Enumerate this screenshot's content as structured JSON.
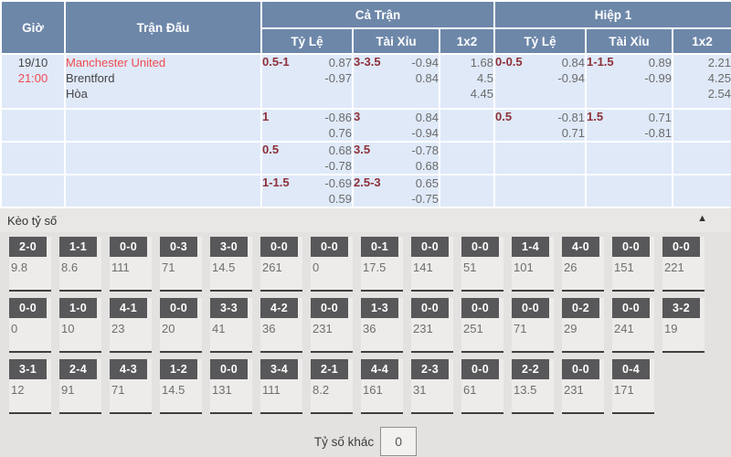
{
  "header": {
    "col_time": "Giờ",
    "col_match": "Trận Đấu",
    "group_full": "Cả Trận",
    "group_half": "Hiệp 1",
    "sub_handicap": "Tỷ Lệ",
    "sub_ou": "Tài Xỉu",
    "sub_1x2": "1x2"
  },
  "match": {
    "date": "19/10",
    "time": "21:00",
    "home": "Manchester United",
    "away": "Brentford",
    "draw": "Hòa"
  },
  "odds": {
    "rows": [
      {
        "full_handicap": {
          "line": "0.5-1",
          "a": "0.87",
          "b": "-0.97"
        },
        "full_ou": {
          "line": "3-3.5",
          "a": "-0.94",
          "b": "0.84"
        },
        "full_1x2": {
          "h": "1.68",
          "d": "4.5",
          "a": "4.45"
        },
        "half_handicap": {
          "line": "0-0.5",
          "a": "0.84",
          "b": "-0.94"
        },
        "half_ou": {
          "line": "1-1.5",
          "a": "0.89",
          "b": "-0.99"
        },
        "half_1x2": {
          "h": "2.21",
          "d": "4.25",
          "a": "2.54"
        }
      },
      {
        "full_handicap": {
          "line": "1",
          "a": "-0.86",
          "b": "0.76"
        },
        "full_ou": {
          "line": "3",
          "a": "0.84",
          "b": "-0.94"
        },
        "full_1x2": {
          "h": "",
          "d": "",
          "a": ""
        },
        "half_handicap": {
          "line": "0.5",
          "a": "-0.81",
          "b": "0.71"
        },
        "half_ou": {
          "line": "1.5",
          "a": "0.71",
          "b": "-0.81"
        },
        "half_1x2": {
          "h": "",
          "d": "",
          "a": ""
        }
      },
      {
        "full_handicap": {
          "line": "0.5",
          "a": "0.68",
          "b": "-0.78"
        },
        "full_ou": {
          "line": "3.5",
          "a": "-0.78",
          "b": "0.68"
        },
        "full_1x2": {
          "h": "",
          "d": "",
          "a": ""
        },
        "half_handicap": {
          "line": "",
          "a": "",
          "b": ""
        },
        "half_ou": {
          "line": "",
          "a": "",
          "b": ""
        },
        "half_1x2": {
          "h": "",
          "d": "",
          "a": ""
        }
      },
      {
        "full_handicap": {
          "line": "1-1.5",
          "a": "-0.69",
          "b": "0.59"
        },
        "full_ou": {
          "line": "2.5-3",
          "a": "0.65",
          "b": "-0.75"
        },
        "full_1x2": {
          "h": "",
          "d": "",
          "a": ""
        },
        "half_handicap": {
          "line": "",
          "a": "",
          "b": ""
        },
        "half_ou": {
          "line": "",
          "a": "",
          "b": ""
        },
        "half_1x2": {
          "h": "",
          "d": "",
          "a": ""
        }
      }
    ]
  },
  "correct_score": {
    "title": "Kèo tỷ số",
    "collapse_icon": "▲",
    "rows": [
      [
        {
          "score": "2-0",
          "odds": "9.8"
        },
        {
          "score": "1-1",
          "odds": "8.6"
        },
        {
          "score": "0-0",
          "odds": "111"
        },
        {
          "score": "0-3",
          "odds": "71"
        },
        {
          "score": "3-0",
          "odds": "14.5"
        },
        {
          "score": "0-0",
          "odds": "261"
        },
        {
          "score": "0-0",
          "odds": "0"
        },
        {
          "score": "0-1",
          "odds": "17.5"
        },
        {
          "score": "0-0",
          "odds": "141"
        },
        {
          "score": "0-0",
          "odds": "51"
        },
        {
          "score": "1-4",
          "odds": "101"
        },
        {
          "score": "4-0",
          "odds": "26"
        },
        {
          "score": "0-0",
          "odds": "151"
        },
        {
          "score": "0-0",
          "odds": "221"
        }
      ],
      [
        {
          "score": "0-0",
          "odds": "0"
        },
        {
          "score": "1-0",
          "odds": "10"
        },
        {
          "score": "4-1",
          "odds": "23"
        },
        {
          "score": "0-0",
          "odds": "20"
        },
        {
          "score": "3-3",
          "odds": "41"
        },
        {
          "score": "4-2",
          "odds": "36"
        },
        {
          "score": "0-0",
          "odds": "231"
        },
        {
          "score": "1-3",
          "odds": "36"
        },
        {
          "score": "0-0",
          "odds": "231"
        },
        {
          "score": "0-0",
          "odds": "251"
        },
        {
          "score": "0-0",
          "odds": "71"
        },
        {
          "score": "0-2",
          "odds": "29"
        },
        {
          "score": "0-0",
          "odds": "241"
        },
        {
          "score": "3-2",
          "odds": "19"
        }
      ],
      [
        {
          "score": "3-1",
          "odds": "12"
        },
        {
          "score": "2-4",
          "odds": "91"
        },
        {
          "score": "4-3",
          "odds": "71"
        },
        {
          "score": "1-2",
          "odds": "14.5"
        },
        {
          "score": "0-0",
          "odds": "131"
        },
        {
          "score": "3-4",
          "odds": "111"
        },
        {
          "score": "2-1",
          "odds": "8.2"
        },
        {
          "score": "4-4",
          "odds": "161"
        },
        {
          "score": "2-3",
          "odds": "31"
        },
        {
          "score": "0-0",
          "odds": "61"
        },
        {
          "score": "2-2",
          "odds": "13.5"
        },
        {
          "score": "0-0",
          "odds": "231"
        },
        {
          "score": "0-4",
          "odds": "171"
        }
      ]
    ],
    "other_label": "Tỷ số khác",
    "other_value": "0"
  }
}
